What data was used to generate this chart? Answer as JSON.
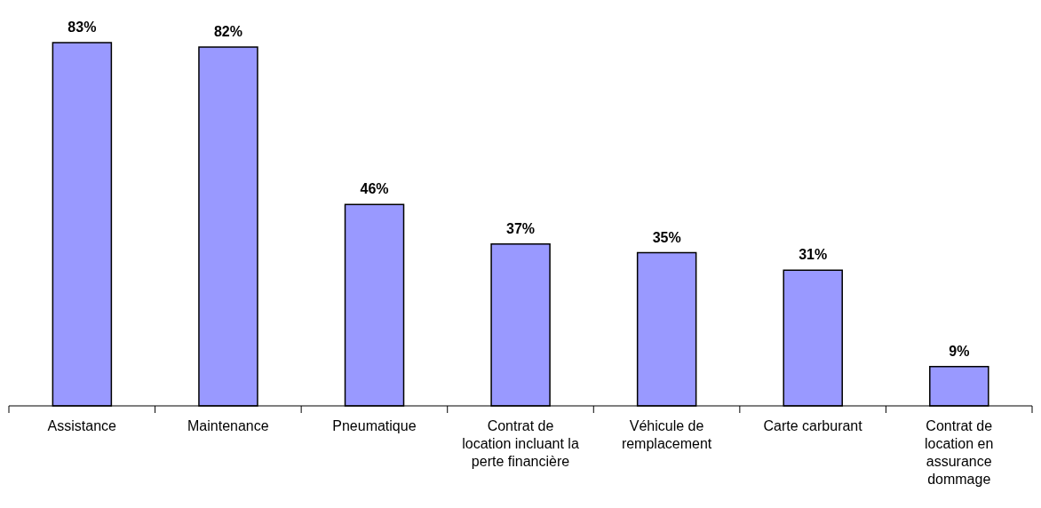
{
  "chart_data": {
    "type": "bar",
    "categories": [
      "Assistance",
      "Maintenance",
      "Pneumatique",
      "Contrat de location incluant la perte financière",
      "Véhicule de remplacement",
      "Carte carburant",
      "Contrat de location en assurance dommage"
    ],
    "values": [
      83,
      82,
      46,
      37,
      35,
      31,
      9
    ],
    "value_labels": [
      "83%",
      "82%",
      "46%",
      "37%",
      "35%",
      "31%",
      "9%"
    ],
    "color": "#9999ff"
  }
}
